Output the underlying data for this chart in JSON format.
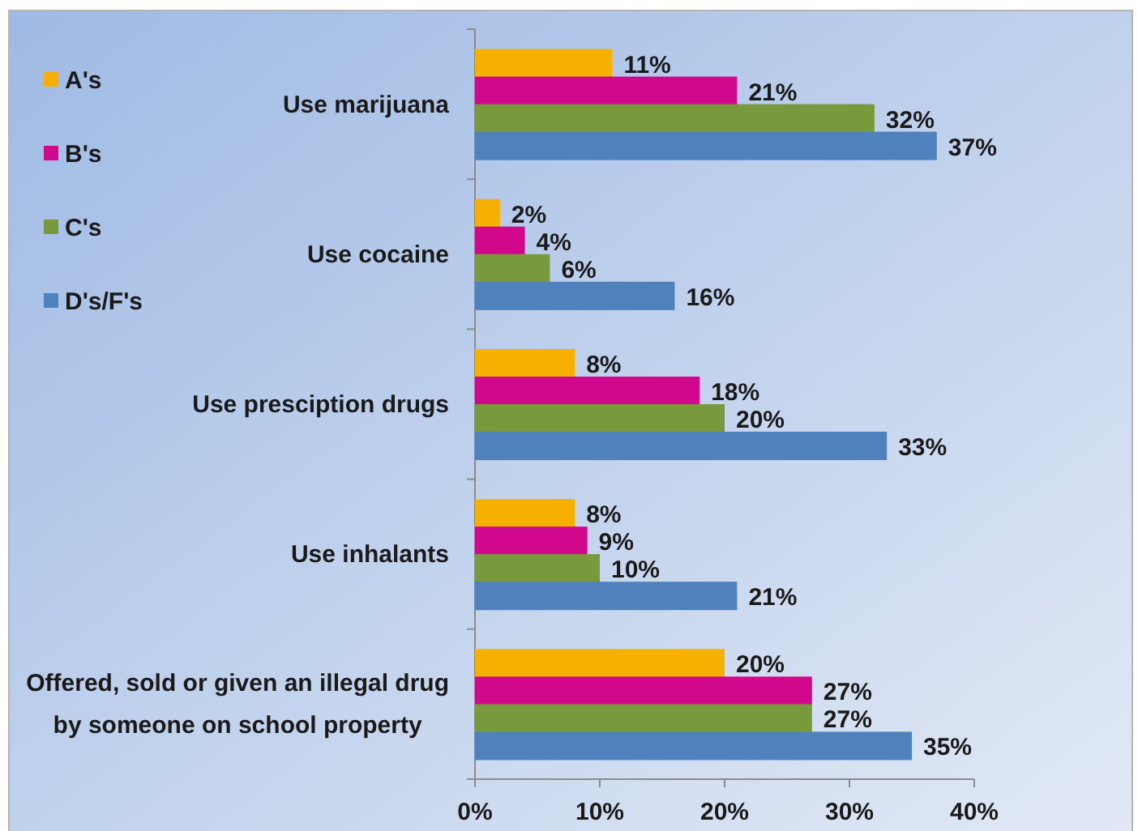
{
  "chart_data": {
    "type": "bar",
    "orientation": "horizontal",
    "categories": [
      "Use marijuana",
      "Use cocaine",
      "Use presciption drugs",
      "Use inhalants",
      "Offered, sold or given an illegal drug by someone on school property"
    ],
    "series": [
      {
        "name": "A's",
        "color": "#f5b000",
        "values": [
          11,
          2,
          8,
          8,
          20
        ],
        "value_labels": [
          "11%",
          "2%",
          "8%",
          "8%",
          "20%"
        ]
      },
      {
        "name": "B's",
        "color": "#d1088c",
        "values": [
          21,
          4,
          18,
          9,
          27
        ],
        "value_labels": [
          "21%",
          "4%",
          "18%",
          "9%",
          "27%"
        ]
      },
      {
        "name": "C's",
        "color": "#789a3d",
        "values": [
          32,
          6,
          20,
          10,
          27
        ],
        "value_labels": [
          "32%",
          "6%",
          "20%",
          "10%",
          "27%"
        ]
      },
      {
        "name": "D's/F's",
        "color": "#4f81bd",
        "values": [
          37,
          16,
          33,
          21,
          35
        ],
        "value_labels": [
          "37%",
          "16%",
          "33%",
          "21%",
          "35%"
        ]
      }
    ],
    "xlim": [
      0,
      40
    ],
    "xticks": [
      {
        "value": 0,
        "label": "0%"
      },
      {
        "value": 10,
        "label": "10%"
      },
      {
        "value": 20,
        "label": "20%"
      },
      {
        "value": 30,
        "label": "30%"
      },
      {
        "value": 40,
        "label": "40%"
      }
    ],
    "legend": "top left"
  }
}
